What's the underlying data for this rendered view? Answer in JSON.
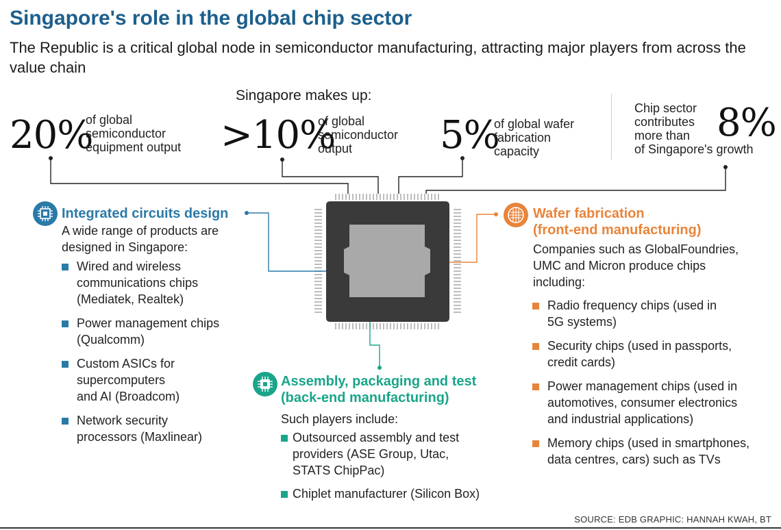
{
  "title": "Singapore's role in the global chip sector",
  "subtitle": "The Republic is a critical global node in semiconductor manufacturing, attracting major players from across the value chain",
  "makes_up_label": "Singapore makes up:",
  "stats": [
    {
      "value": "20%",
      "lines": [
        "of global",
        "semiconductor",
        "equipment output"
      ]
    },
    {
      "value": ">10%",
      "lines": [
        "of global",
        "semiconductor",
        "output"
      ]
    },
    {
      "value": "5%",
      "lines": [
        "of global wafer",
        "fabrication",
        "capacity"
      ]
    },
    {
      "value": "8%",
      "lines": [
        "Chip sector",
        "contributes",
        "more than",
        "of Singapore's growth"
      ]
    }
  ],
  "ic_design": {
    "title": "Integrated circuits design",
    "intro": [
      "A wide range of products are",
      "designed in Singapore:"
    ],
    "items": [
      [
        "Wired and wireless",
        "communications chips",
        "(Mediatek, Realtek)"
      ],
      [
        "Power management chips",
        "(Qualcomm)"
      ],
      [
        "Custom ASICs for",
        "supercomputers",
        "and AI (Broadcom)"
      ],
      [
        "Network security",
        "processors (Maxlinear)"
      ]
    ]
  },
  "wafer": {
    "title": "Wafer fabrication",
    "subtitle": "(front-end manufacturing)",
    "intro": [
      "Companies such as GlobalFoundries,",
      "UMC and Micron produce chips",
      "including:"
    ],
    "items": [
      [
        "Radio frequency chips (used in",
        "5G systems)"
      ],
      [
        "Security chips (used in passports,",
        "credit cards)"
      ],
      [
        "Power management chips (used in",
        "automotives, consumer electronics",
        "and industrial applications)"
      ],
      [
        "Memory chips (used in smartphones,",
        "data centres, cars) such as TVs"
      ]
    ]
  },
  "assembly": {
    "title": "Assembly, packaging and test",
    "subtitle": "(back-end manufacturing)",
    "intro": "Such players include:",
    "items": [
      [
        "Outsourced assembly and test",
        "providers (ASE Group, Utac,",
        "STATS ChipPac)"
      ],
      [
        "Chiplet manufacturer (Silicon Box)"
      ]
    ]
  },
  "source": "SOURCE: EDB   GRAPHIC: HANNAH KWAH, BT",
  "colors": {
    "title": "#1c5f8c",
    "ic_design": "#2a7aa8",
    "wafer": "#e8843a",
    "assembly": "#1aa58a",
    "chip_body": "#3a3a3a",
    "chip_die": "#a9a9a9"
  },
  "icons": {
    "ic_design": "circuit-chip-icon",
    "wafer": "wafer-icon",
    "assembly": "chip-package-icon"
  }
}
